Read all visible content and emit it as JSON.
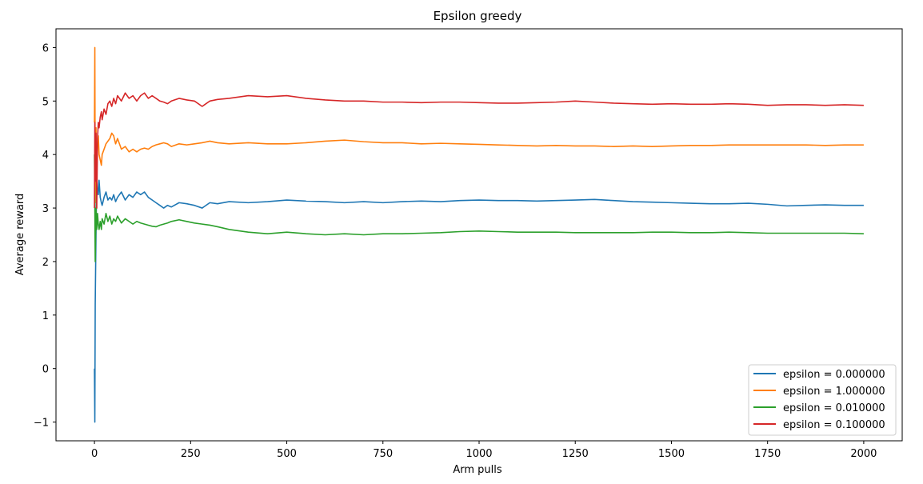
{
  "chart_data": {
    "type": "line",
    "title": "Epsilon greedy",
    "xlabel": "Arm pulls",
    "ylabel": "Average reward",
    "xlim": [
      -100,
      2100
    ],
    "ylim": [
      -1.35,
      6.35
    ],
    "xticks": [
      0,
      250,
      500,
      750,
      1000,
      1250,
      1500,
      1750,
      2000
    ],
    "yticks": [
      -1,
      0,
      1,
      2,
      3,
      4,
      5,
      6
    ],
    "xtick_labels": [
      "0",
      "250",
      "500",
      "750",
      "1000",
      "1250",
      "1500",
      "1750",
      "2000"
    ],
    "ytick_labels": [
      "−1",
      "0",
      "1",
      "2",
      "3",
      "4",
      "5",
      "6"
    ],
    "legend_position": "lower-right",
    "grid": false,
    "series": [
      {
        "name": "epsilon = 0.000000",
        "color": "#1f77b4",
        "x": [
          0,
          1,
          2,
          4,
          6,
          8,
          10,
          12,
          15,
          18,
          20,
          25,
          30,
          35,
          40,
          45,
          50,
          55,
          60,
          70,
          80,
          90,
          100,
          110,
          120,
          130,
          140,
          150,
          160,
          170,
          180,
          190,
          200,
          220,
          240,
          260,
          280,
          300,
          320,
          350,
          400,
          450,
          500,
          550,
          600,
          650,
          700,
          750,
          800,
          850,
          900,
          950,
          1000,
          1050,
          1100,
          1150,
          1200,
          1250,
          1300,
          1350,
          1400,
          1450,
          1500,
          1550,
          1600,
          1650,
          1700,
          1750,
          1800,
          1850,
          1900,
          1950,
          2000
        ],
        "values": [
          0,
          -1,
          1.2,
          2.5,
          3.6,
          3.3,
          3.25,
          3.52,
          3.2,
          3.1,
          3.05,
          3.2,
          3.3,
          3.15,
          3.2,
          3.15,
          3.25,
          3.12,
          3.2,
          3.3,
          3.15,
          3.25,
          3.2,
          3.3,
          3.25,
          3.3,
          3.2,
          3.15,
          3.1,
          3.05,
          3.0,
          3.05,
          3.02,
          3.1,
          3.08,
          3.05,
          3.0,
          3.1,
          3.08,
          3.12,
          3.1,
          3.12,
          3.15,
          3.13,
          3.12,
          3.1,
          3.12,
          3.1,
          3.12,
          3.13,
          3.12,
          3.14,
          3.15,
          3.14,
          3.14,
          3.13,
          3.14,
          3.15,
          3.16,
          3.14,
          3.12,
          3.11,
          3.1,
          3.09,
          3.08,
          3.08,
          3.09,
          3.07,
          3.04,
          3.05,
          3.06,
          3.05,
          3.05
        ]
      },
      {
        "name": "epsilon = 1.000000",
        "color": "#ff7f0e",
        "x": [
          0,
          1,
          2,
          4,
          6,
          8,
          10,
          12,
          15,
          18,
          20,
          25,
          30,
          35,
          40,
          45,
          50,
          55,
          60,
          70,
          80,
          90,
          100,
          110,
          120,
          130,
          140,
          150,
          160,
          170,
          180,
          190,
          200,
          220,
          240,
          260,
          280,
          300,
          320,
          350,
          400,
          450,
          500,
          550,
          600,
          650,
          700,
          750,
          800,
          850,
          900,
          950,
          1000,
          1050,
          1100,
          1150,
          1200,
          1250,
          1300,
          1350,
          1400,
          1450,
          1500,
          1550,
          1600,
          1650,
          1700,
          1750,
          1800,
          1850,
          1900,
          1950,
          2000
        ],
        "values": [
          4.6,
          6.0,
          3.1,
          4.5,
          3.6,
          4.2,
          4.35,
          4.0,
          3.9,
          3.8,
          4.0,
          4.1,
          4.2,
          4.25,
          4.3,
          4.4,
          4.35,
          4.2,
          4.3,
          4.1,
          4.15,
          4.05,
          4.1,
          4.05,
          4.1,
          4.12,
          4.1,
          4.15,
          4.18,
          4.2,
          4.22,
          4.2,
          4.15,
          4.2,
          4.18,
          4.2,
          4.22,
          4.25,
          4.22,
          4.2,
          4.22,
          4.2,
          4.2,
          4.22,
          4.25,
          4.27,
          4.24,
          4.22,
          4.22,
          4.2,
          4.21,
          4.2,
          4.19,
          4.18,
          4.17,
          4.16,
          4.17,
          4.16,
          4.16,
          4.15,
          4.16,
          4.15,
          4.16,
          4.17,
          4.17,
          4.18,
          4.18,
          4.18,
          4.18,
          4.18,
          4.17,
          4.18,
          4.18
        ]
      },
      {
        "name": "epsilon = 0.010000",
        "color": "#2ca02c",
        "x": [
          0,
          1,
          2,
          4,
          6,
          8,
          10,
          12,
          15,
          18,
          20,
          25,
          30,
          35,
          40,
          45,
          50,
          55,
          60,
          70,
          80,
          90,
          100,
          110,
          120,
          130,
          140,
          150,
          160,
          170,
          180,
          190,
          200,
          220,
          240,
          260,
          280,
          300,
          320,
          350,
          400,
          450,
          500,
          550,
          600,
          650,
          700,
          750,
          800,
          850,
          900,
          950,
          1000,
          1050,
          1100,
          1150,
          1200,
          1250,
          1300,
          1350,
          1400,
          1450,
          1500,
          1550,
          1600,
          1650,
          1700,
          1750,
          1800,
          1850,
          1900,
          1950,
          2000
        ],
        "values": [
          4.0,
          3.0,
          2.0,
          3.0,
          2.6,
          2.9,
          2.7,
          2.6,
          2.75,
          2.6,
          2.8,
          2.7,
          2.9,
          2.75,
          2.85,
          2.7,
          2.8,
          2.75,
          2.85,
          2.72,
          2.8,
          2.75,
          2.7,
          2.75,
          2.72,
          2.7,
          2.68,
          2.66,
          2.65,
          2.68,
          2.7,
          2.72,
          2.75,
          2.78,
          2.75,
          2.72,
          2.7,
          2.68,
          2.65,
          2.6,
          2.55,
          2.52,
          2.55,
          2.52,
          2.5,
          2.52,
          2.5,
          2.52,
          2.52,
          2.53,
          2.54,
          2.56,
          2.57,
          2.56,
          2.55,
          2.55,
          2.55,
          2.54,
          2.54,
          2.54,
          2.54,
          2.55,
          2.55,
          2.54,
          2.54,
          2.55,
          2.54,
          2.53,
          2.53,
          2.53,
          2.53,
          2.53,
          2.52
        ]
      },
      {
        "name": "epsilon = 0.100000",
        "color": "#d62728",
        "x": [
          0,
          1,
          2,
          4,
          6,
          8,
          10,
          12,
          15,
          18,
          20,
          25,
          30,
          35,
          40,
          45,
          50,
          55,
          60,
          70,
          80,
          90,
          100,
          110,
          120,
          130,
          140,
          150,
          160,
          170,
          180,
          190,
          200,
          220,
          240,
          260,
          280,
          300,
          320,
          350,
          400,
          450,
          500,
          550,
          600,
          650,
          700,
          750,
          800,
          850,
          900,
          950,
          1000,
          1050,
          1100,
          1150,
          1200,
          1250,
          1300,
          1350,
          1400,
          1450,
          1500,
          1550,
          1600,
          1650,
          1700,
          1750,
          1800,
          1850,
          1900,
          1950,
          2000
        ],
        "values": [
          3.0,
          4.6,
          3.5,
          4.4,
          3.0,
          4.3,
          4.6,
          4.5,
          4.7,
          4.8,
          4.65,
          4.85,
          4.75,
          4.95,
          5.0,
          4.9,
          5.05,
          4.95,
          5.1,
          5.0,
          5.15,
          5.05,
          5.1,
          5.0,
          5.1,
          5.15,
          5.05,
          5.1,
          5.05,
          5.0,
          4.98,
          4.95,
          5.0,
          5.05,
          5.02,
          5.0,
          4.9,
          5.0,
          5.03,
          5.05,
          5.1,
          5.08,
          5.1,
          5.05,
          5.02,
          5.0,
          5.0,
          4.98,
          4.98,
          4.97,
          4.98,
          4.98,
          4.97,
          4.96,
          4.96,
          4.97,
          4.98,
          5.0,
          4.98,
          4.96,
          4.95,
          4.94,
          4.95,
          4.94,
          4.94,
          4.95,
          4.94,
          4.92,
          4.93,
          4.93,
          4.92,
          4.93,
          4.92
        ]
      }
    ]
  }
}
